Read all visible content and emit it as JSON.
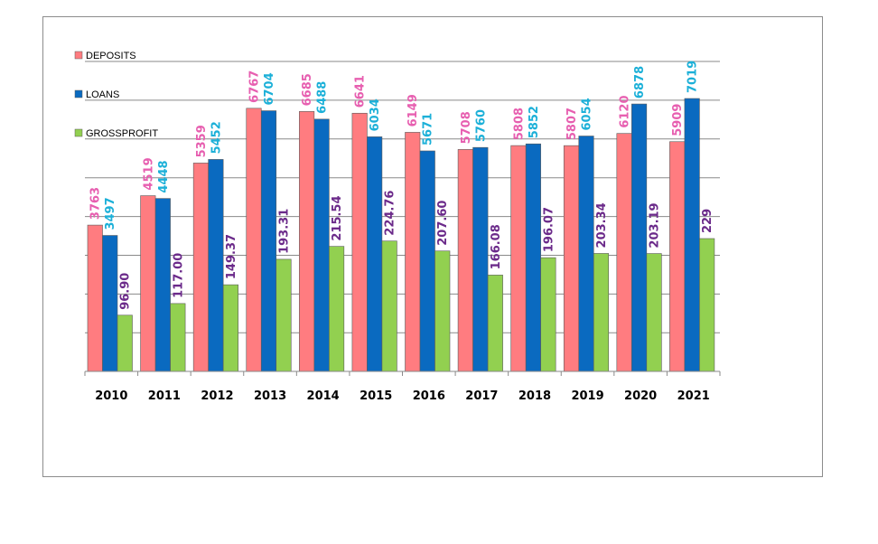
{
  "chart_data": {
    "type": "bar",
    "title": "",
    "xlabel": "",
    "ylabel": "",
    "categories": [
      "2010",
      "2011",
      "2012",
      "2013",
      "2014",
      "2015",
      "2016",
      "2017",
      "2018",
      "2019",
      "2020",
      "2021"
    ],
    "series": [
      {
        "name": "DEPOSITS",
        "color": "#ff7c80",
        "label_color": "#e75fb0",
        "values": [
          3763,
          4519,
          5359,
          6767,
          6685,
          6641,
          6149,
          5708,
          5808,
          5807,
          6120,
          5909
        ],
        "labels": [
          "3763",
          "4519",
          "5359",
          "6767",
          "6685",
          "6641",
          "6149",
          "5708",
          "5808",
          "5807",
          "6120",
          "5909"
        ]
      },
      {
        "name": "LOANS",
        "color": "#0a6ac0",
        "label_color": "#1cb0d8",
        "values": [
          3497,
          4448,
          5452,
          6704,
          6488,
          6034,
          5671,
          5760,
          5852,
          6054,
          6878,
          7019
        ],
        "labels": [
          "3497",
          "4448",
          "5452",
          "6704",
          "6488",
          "6034",
          "5671",
          "5760",
          "5852",
          "6054",
          "6878",
          "7019"
        ]
      },
      {
        "name": "GROSSPROFIT",
        "color": "#92d050",
        "label_color": "#6b2a8a",
        "values": [
          96.9,
          117.0,
          149.37,
          193.31,
          215.54,
          224.76,
          207.6,
          166.08,
          196.07,
          203.34,
          203.19,
          229
        ],
        "labels": [
          "96.90",
          "117.00",
          "149.37",
          "193.31",
          "215.54",
          "224.76",
          "207.60",
          "166.08",
          "196.07",
          "203.34",
          "203.19",
          "229"
        ]
      }
    ],
    "legend_position": "top-left",
    "grid": true
  }
}
